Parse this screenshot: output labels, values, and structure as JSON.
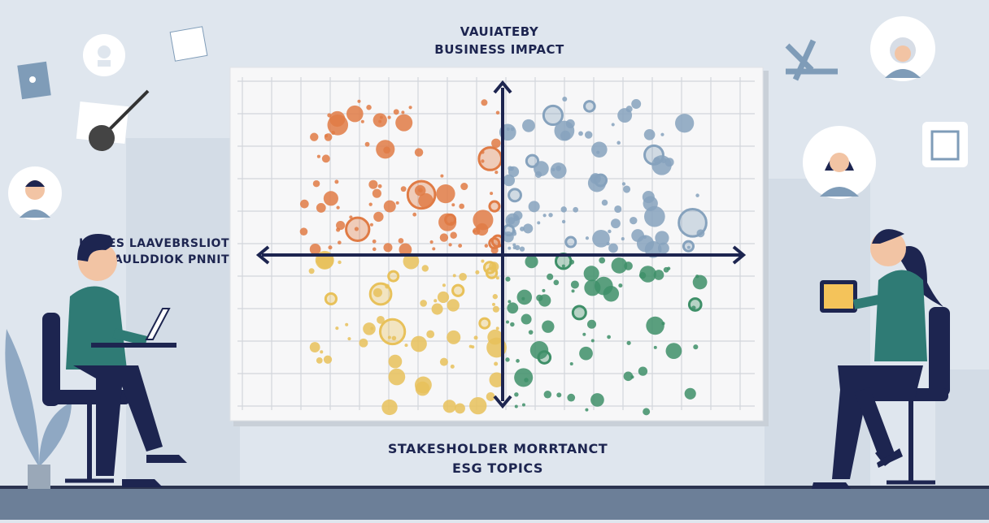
{
  "header": {
    "line1": "VAUIATEBY",
    "line2": "BUSINESS IMPACT"
  },
  "side_label": {
    "line1": "IINNES LAAVEBRSLIOT",
    "line2": "STAAULDDIOK PNNIT"
  },
  "footer": {
    "line1": "STAKESHOLDER MORRTANCT",
    "line2": "ESG TOPICS"
  }
}
